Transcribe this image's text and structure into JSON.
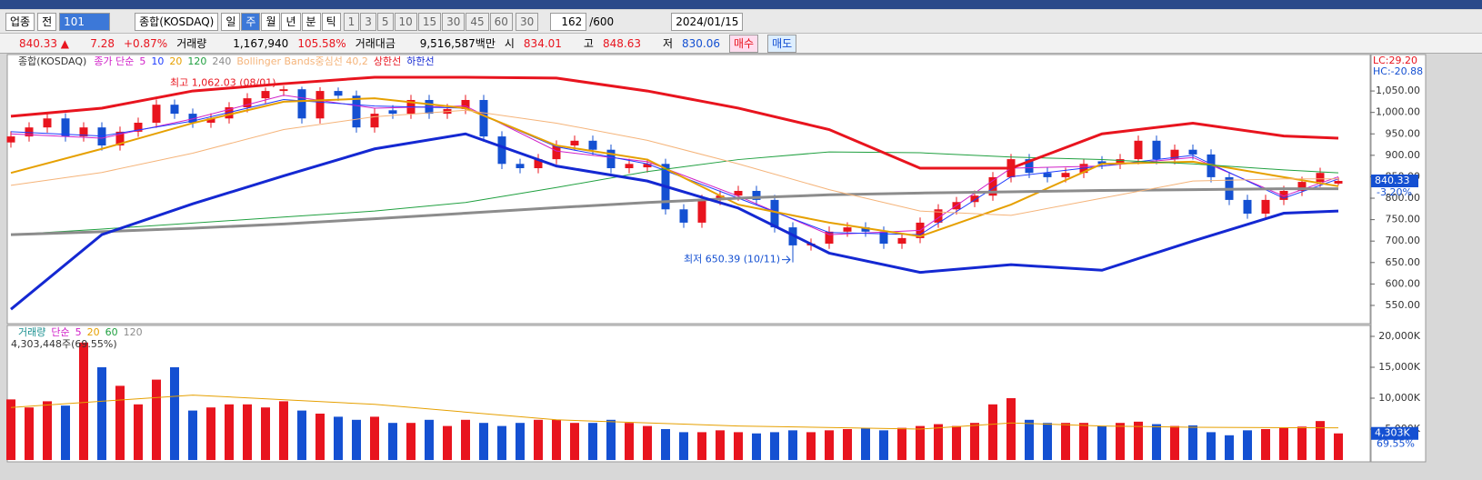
{
  "toolbar": {
    "market": "업종",
    "scope": "전",
    "code": "101",
    "name": "종합(KOSDAQ)",
    "periods": [
      "일",
      "주",
      "월",
      "년",
      "분",
      "틱"
    ],
    "active_period_index": 1,
    "intervals": [
      "1",
      "3",
      "5",
      "10",
      "15",
      "30",
      "45",
      "60"
    ],
    "interval_select": "30",
    "count": "162",
    "count_max": "/600",
    "date": "2024/01/15"
  },
  "info": {
    "price": "840.33 ▲",
    "change": "7.28",
    "change_pct": "+0.87%",
    "volume_label": "거래량",
    "volume": "1,167,940",
    "volume_pct": "105.58%",
    "amount_label": "거래대금",
    "amount": "9,516,587백만",
    "open_label": "시",
    "open": "834.01",
    "high_label": "고",
    "high": "848.63",
    "low_label": "저",
    "low": "830.06",
    "buy": "매수",
    "sell": "매도"
  },
  "chart_data": [
    {
      "type": "candlestick",
      "label": "종합(KOSDAQ)",
      "ma_title": "종가 단순",
      "corner_top": "LC:29.20",
      "corner_bottom": "HC:-20.88",
      "last_change": "-3.20%",
      "annotations": {
        "high": "최고 1,062.03 (08/01)",
        "low": "최저 650.39 (10/11)"
      },
      "up_color": "#e8141e",
      "down_color": "#1450d2",
      "open": [
        930,
        944,
        965,
        986,
        944,
        965,
        923,
        955,
        976,
        1018,
        997,
        976,
        986,
        1012,
        1033,
        1050,
        1054,
        986,
        1050,
        1039,
        965,
        1005,
        997,
        1029,
        997,
        1008,
        1029,
        944,
        880,
        870,
        891,
        923,
        934,
        913,
        870,
        872,
        880,
        774,
        743,
        796,
        806,
        817,
        796,
        732,
        690,
        694,
        722,
        732,
        722,
        694,
        707,
        743,
        774,
        791,
        806,
        849,
        891,
        859,
        849,
        859,
        886,
        880,
        891,
        934,
        891,
        913,
        902,
        849,
        796,
        764,
        796,
        817,
        838,
        834.01
      ],
      "high": [
        956,
        977,
        998,
        998,
        977,
        977,
        967,
        988,
        1030,
        1030,
        1009,
        998,
        1024,
        1045,
        1058,
        1062.03,
        1060,
        1059,
        1058,
        1051,
        1009,
        1017,
        1041,
        1041,
        1020,
        1041,
        1041,
        956,
        892,
        903,
        935,
        946,
        946,
        925,
        892,
        892,
        892,
        786,
        808,
        818,
        829,
        829,
        808,
        744,
        706,
        734,
        744,
        744,
        734,
        719,
        755,
        786,
        803,
        818,
        861,
        903,
        903,
        871,
        871,
        892,
        898,
        903,
        946,
        946,
        925,
        925,
        914,
        861,
        808,
        808,
        829,
        850,
        871,
        848.63
      ],
      "low": [
        918,
        932,
        953,
        932,
        932,
        911,
        911,
        943,
        964,
        985,
        964,
        964,
        974,
        1000,
        1021,
        1038,
        974,
        974,
        1027,
        953,
        953,
        985,
        985,
        985,
        985,
        996,
        932,
        868,
        858,
        858,
        879,
        911,
        901,
        858,
        858,
        860,
        762,
        731,
        731,
        784,
        794,
        784,
        720,
        650.39,
        678,
        682,
        710,
        710,
        682,
        682,
        695,
        731,
        762,
        779,
        794,
        837,
        847,
        837,
        837,
        847,
        868,
        868,
        879,
        879,
        879,
        890,
        837,
        784,
        752,
        752,
        784,
        805,
        826,
        830.06
      ],
      "close": [
        944,
        965,
        986,
        944,
        965,
        923,
        955,
        976,
        1018,
        997,
        976,
        986,
        1012,
        1033,
        1050,
        1054,
        986,
        1050,
        1039,
        965,
        997,
        997,
        1029,
        997,
        1008,
        1029,
        944,
        880,
        870,
        891,
        923,
        934,
        913,
        870,
        880,
        880,
        774,
        743,
        796,
        806,
        817,
        796,
        732,
        690,
        694,
        722,
        732,
        722,
        694,
        707,
        743,
        774,
        791,
        806,
        849,
        891,
        859,
        849,
        859,
        880,
        880,
        891,
        934,
        891,
        913,
        902,
        849,
        796,
        764,
        796,
        817,
        838,
        859,
        840.33
      ],
      "ylim": [
        516,
        1118
      ],
      "yticks": [
        {
          "value": 550,
          "label": "550.00"
        },
        {
          "value": 600,
          "label": "600.00"
        },
        {
          "value": 650,
          "label": "650.00"
        },
        {
          "value": 700,
          "label": "700.00"
        },
        {
          "value": 750,
          "label": "750.00"
        },
        {
          "value": 800,
          "label": "800.00"
        },
        {
          "value": 850,
          "label": "850.00"
        },
        {
          "value": 900,
          "label": "900.00"
        },
        {
          "value": 950,
          "label": "950.00"
        },
        {
          "value": 1000,
          "label": "1,000.00"
        },
        {
          "value": 1050,
          "label": "1,050.00"
        }
      ],
      "series": [
        {
          "name": "5",
          "color": "#d020c8",
          "line_width": 1,
          "x": [
            0,
            5,
            10,
            15,
            20,
            25,
            30,
            35,
            40,
            45,
            50,
            55,
            60,
            65,
            70,
            73
          ],
          "values": [
            950,
            940,
            985,
            1040,
            1010,
            1015,
            910,
            885,
            805,
            715,
            725,
            870,
            875,
            895,
            805,
            850
          ]
        },
        {
          "name": "10",
          "color": "#1e3cff",
          "line_width": 1,
          "x": [
            0,
            5,
            10,
            15,
            20,
            25,
            30,
            35,
            40,
            45,
            50,
            55,
            60,
            65,
            70,
            73
          ],
          "values": [
            955,
            945,
            980,
            1030,
            1015,
            1010,
            920,
            880,
            800,
            720,
            715,
            850,
            875,
            900,
            800,
            845
          ]
        },
        {
          "name": "20",
          "color": "#e6a000",
          "line_width": 2,
          "x": [
            0,
            5,
            10,
            15,
            20,
            25,
            30,
            35,
            40,
            45,
            50,
            55,
            60,
            65,
            70,
            73
          ],
          "values": [
            859,
            915,
            975,
            1025,
            1033,
            1010,
            923,
            890,
            785,
            743,
            711,
            785,
            880,
            885,
            849,
            828
          ]
        },
        {
          "name": "120",
          "color": "#20a040",
          "line_width": 1,
          "x": [
            0,
            5,
            10,
            15,
            20,
            25,
            30,
            35,
            40,
            45,
            50,
            55,
            60,
            65,
            70,
            73
          ],
          "values": [
            715,
            728,
            742,
            756,
            770,
            790,
            825,
            862,
            890,
            908,
            906,
            896,
            890,
            880,
            866,
            859
          ]
        },
        {
          "name": "240",
          "color": "#8c8c8c",
          "line_width": 3,
          "x": [
            0,
            5,
            10,
            15,
            20,
            25,
            30,
            35,
            40,
            45,
            50,
            55,
            60,
            65,
            70,
            73
          ],
          "values": [
            715,
            722,
            730,
            740,
            752,
            765,
            778,
            790,
            800,
            808,
            812,
            815,
            818,
            820,
            822,
            822
          ]
        },
        {
          "name": "Bollinger Bands중심선 40,2",
          "color": "#f5b47a",
          "line_width": 1,
          "x": [
            0,
            5,
            10,
            15,
            20,
            25,
            30,
            35,
            40,
            45,
            50,
            55,
            60,
            65,
            70,
            73
          ],
          "values": [
            830,
            860,
            905,
            960,
            990,
            1005,
            975,
            935,
            880,
            820,
            770,
            760,
            800,
            840,
            845,
            845
          ]
        },
        {
          "name": "상한선",
          "color": "#e8141e",
          "line_width": 3,
          "x": [
            0,
            5,
            10,
            15,
            20,
            25,
            30,
            35,
            40,
            45,
            50,
            55,
            60,
            65,
            70,
            73
          ],
          "values": [
            991,
            1010,
            1050,
            1067,
            1082,
            1082,
            1080,
            1050,
            1010,
            960,
            870,
            870,
            950,
            975,
            945,
            940
          ]
        },
        {
          "name": "하한선",
          "color": "#1428d2",
          "line_width": 3,
          "x": [
            0,
            5,
            10,
            15,
            20,
            25,
            30,
            35,
            40,
            45,
            50,
            55,
            60,
            65,
            70,
            73
          ],
          "values": [
            541,
            715,
            787,
            852,
            915,
            950,
            875,
            840,
            777,
            672,
            627,
            645,
            632,
            700,
            765,
            770
          ]
        }
      ]
    },
    {
      "type": "bar",
      "label": "거래량",
      "ma_title": "단순",
      "value_label": "4,303,448주(69.55%)",
      "last_label": "4,303K",
      "last_ratio": "69.55%",
      "values": [
        9800,
        8500,
        9500,
        8800,
        19000,
        15000,
        12000,
        9000,
        13000,
        15000,
        8000,
        8500,
        9000,
        9000,
        8500,
        9500,
        8000,
        7500,
        7000,
        6500,
        7000,
        6000,
        6000,
        6500,
        5500,
        6500,
        6000,
        5500,
        6000,
        6500,
        6500,
        6000,
        6000,
        6500,
        6000,
        5500,
        5000,
        4500,
        4500,
        4800,
        4500,
        4300,
        4500,
        4800,
        4500,
        4800,
        5000,
        5200,
        4800,
        5200,
        5500,
        5800,
        5500,
        6000,
        9000,
        10000,
        6500,
        6000,
        6000,
        6000,
        5500,
        6000,
        6200,
        5800,
        5500,
        5600,
        4500,
        4000,
        4800,
        5000,
        5200,
        5400,
        6300,
        4303
      ],
      "ylim": [
        0,
        21470
      ],
      "yticks": [
        {
          "value": 5000,
          "label": "5,000K"
        },
        {
          "value": 10000,
          "label": "10,000K"
        },
        {
          "value": 15000,
          "label": "15,000K"
        },
        {
          "value": 20000,
          "label": "20,000K"
        }
      ],
      "series": [
        {
          "name": "5",
          "color": "#d020c8"
        },
        {
          "name": "20",
          "color": "#e6a000",
          "x": [
            0,
            10,
            20,
            30,
            40,
            50,
            55,
            60,
            65,
            73
          ],
          "values": [
            8500,
            10500,
            9000,
            6500,
            5500,
            5000,
            6000,
            5500,
            5300,
            5200
          ]
        },
        {
          "name": "60",
          "color": "#20a040"
        },
        {
          "name": "120",
          "color": "#8c8c8c"
        }
      ]
    }
  ]
}
